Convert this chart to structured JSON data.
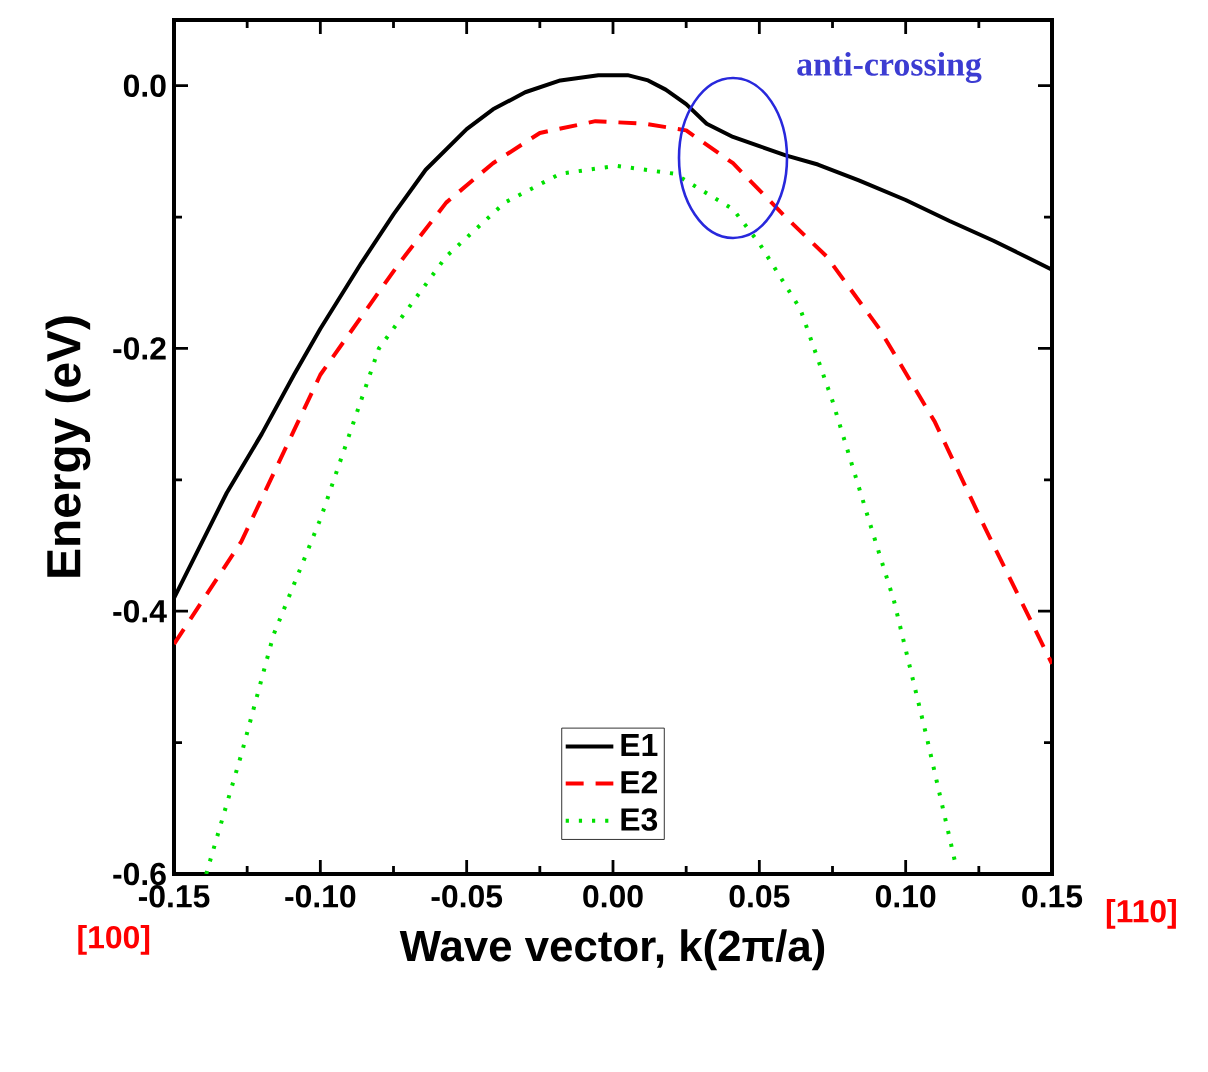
{
  "chart_data": {
    "type": "line",
    "xlabel": "Wave vector, k(2π/a)",
    "ylabel": "Energy (eV)",
    "xlim": [
      -0.15,
      0.15
    ],
    "ylim": [
      -0.6,
      0.05
    ],
    "xticks": [
      {
        "value": -0.15,
        "label": "-0.15"
      },
      {
        "value": -0.1,
        "label": "-0.10"
      },
      {
        "value": -0.05,
        "label": "-0.05"
      },
      {
        "value": 0,
        "label": "0.00"
      },
      {
        "value": 0.05,
        "label": "0.05"
      },
      {
        "value": 0.1,
        "label": "0.10"
      },
      {
        "value": 0.15,
        "label": "0.15"
      }
    ],
    "yticks": [
      {
        "value": -0.6,
        "label": "-0.6"
      },
      {
        "value": -0.4,
        "label": "-0.4"
      },
      {
        "value": -0.2,
        "label": "-0.2"
      },
      {
        "value": 0,
        "label": "0.0"
      }
    ],
    "legend": "bottom",
    "series": [
      {
        "name": "E1",
        "color": "#000000",
        "line_style": "solid",
        "x": [
          -0.15,
          -0.132,
          -0.12,
          -0.109,
          -0.1,
          -0.086,
          -0.075,
          -0.064,
          -0.05,
          -0.041,
          -0.03,
          -0.018,
          -0.005,
          0.005,
          0.012,
          0.018,
          0.025,
          0.032,
          0.041,
          0.05,
          0.059,
          0.07,
          0.084,
          0.1,
          0.115,
          0.13,
          0.15
        ],
        "values": [
          -0.39,
          -0.31,
          -0.265,
          -0.22,
          -0.185,
          -0.135,
          -0.098,
          -0.064,
          -0.033,
          -0.018,
          -0.005,
          0.004,
          0.008,
          0.008,
          0.004,
          -0.003,
          -0.014,
          -0.029,
          -0.039,
          -0.046,
          -0.053,
          -0.06,
          -0.072,
          -0.087,
          -0.103,
          -0.118,
          -0.14
        ]
      },
      {
        "name": "E2",
        "color": "#ff0000",
        "line_style": "dashed",
        "x": [
          -0.15,
          -0.127,
          -0.1,
          -0.073,
          -0.057,
          -0.041,
          -0.025,
          -0.006,
          0.011,
          0.025,
          0.041,
          0.059,
          0.073,
          0.091,
          0.11,
          0.127,
          0.15
        ],
        "values": [
          -0.425,
          -0.347,
          -0.22,
          -0.135,
          -0.089,
          -0.059,
          -0.036,
          -0.027,
          -0.029,
          -0.034,
          -0.059,
          -0.1,
          -0.13,
          -0.185,
          -0.256,
          -0.336,
          -0.44
        ]
      },
      {
        "name": "E3",
        "color": "#00e000",
        "line_style": "dotted",
        "x": [
          -0.139,
          -0.127,
          -0.116,
          -0.1,
          -0.08,
          -0.057,
          -0.037,
          -0.018,
          0.001,
          0.021,
          0.041,
          0.05,
          0.064,
          0.075,
          0.089,
          0.096,
          0.107,
          0.117
        ],
        "values": [
          -0.6,
          -0.509,
          -0.418,
          -0.33,
          -0.2,
          -0.13,
          -0.089,
          -0.067,
          -0.061,
          -0.067,
          -0.094,
          -0.12,
          -0.17,
          -0.24,
          -0.342,
          -0.392,
          -0.494,
          -0.592
        ]
      }
    ],
    "annotations": [
      {
        "text": "anti-crossing",
        "x": 0.041,
        "y": -0.055
      },
      "[100]",
      "[110]"
    ]
  }
}
